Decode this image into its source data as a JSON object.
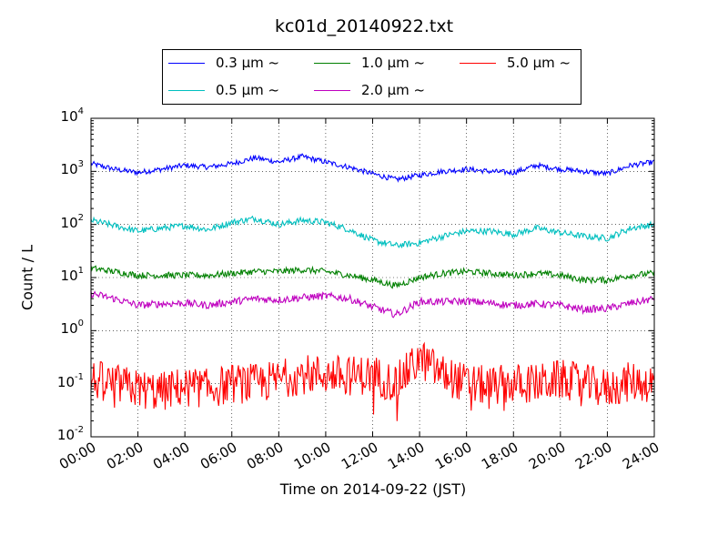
{
  "chart_data": {
    "type": "line",
    "title": "kc01d_20140922.txt",
    "xlabel": "Time on 2014-09-22 (JST)",
    "ylabel": "Count / L",
    "yscale": "log",
    "xlim": [
      "00:00",
      "24:00"
    ],
    "ylim": [
      0.01,
      10000
    ],
    "x_tick_labels": [
      "00:00",
      "02:00",
      "04:00",
      "06:00",
      "08:00",
      "10:00",
      "12:00",
      "14:00",
      "16:00",
      "18:00",
      "20:00",
      "22:00",
      "24:00"
    ],
    "y_tick_labels": [
      {
        "base": "10",
        "exp": "-2"
      },
      {
        "base": "10",
        "exp": "-1"
      },
      {
        "base": "10",
        "exp": "0"
      },
      {
        "base": "10",
        "exp": "1"
      },
      {
        "base": "10",
        "exp": "2"
      },
      {
        "base": "10",
        "exp": "3"
      },
      {
        "base": "10",
        "exp": "4"
      }
    ],
    "grid": true,
    "legend_position": "top-center",
    "x": [
      "00:00",
      "01:00",
      "02:00",
      "03:00",
      "04:00",
      "05:00",
      "06:00",
      "07:00",
      "08:00",
      "09:00",
      "10:00",
      "11:00",
      "12:00",
      "13:00",
      "14:00",
      "15:00",
      "16:00",
      "17:00",
      "18:00",
      "19:00",
      "20:00",
      "21:00",
      "22:00",
      "23:00",
      "24:00"
    ],
    "series": [
      {
        "name": "0.3 μm ~",
        "color": "#0000ff",
        "values": [
          1400,
          1100,
          950,
          1100,
          1300,
          1200,
          1400,
          1800,
          1500,
          1900,
          1500,
          1200,
          900,
          700,
          850,
          1000,
          1100,
          1000,
          950,
          1300,
          1100,
          1000,
          900,
          1300,
          1500
        ]
      },
      {
        "name": "0.5 μm ~",
        "color": "#00bfbf",
        "values": [
          120,
          95,
          75,
          85,
          95,
          80,
          110,
          130,
          100,
          120,
          110,
          80,
          50,
          40,
          45,
          60,
          75,
          75,
          65,
          85,
          70,
          60,
          55,
          85,
          100
        ]
      },
      {
        "name": "1.0 μm ~",
        "color": "#008000",
        "values": [
          15,
          13,
          11,
          11,
          11,
          11,
          12,
          13,
          13,
          14,
          13,
          11,
          9,
          7,
          10,
          12,
          13,
          12,
          11,
          12,
          11,
          9,
          9,
          11,
          12
        ]
      },
      {
        "name": "2.0 μm ~",
        "color": "#bf00bf",
        "values": [
          5,
          4,
          3,
          3.2,
          3.3,
          3,
          3.5,
          4,
          3.8,
          4.2,
          4.5,
          4,
          2.8,
          2,
          3.5,
          3.5,
          3.6,
          3.3,
          3,
          3.2,
          3,
          2.5,
          2.6,
          3.3,
          4
        ]
      },
      {
        "name": "5.0 μm ~",
        "color": "#ff0000",
        "values": [
          0.12,
          0.1,
          0.08,
          0.07,
          0.09,
          0.08,
          0.1,
          0.1,
          0.12,
          0.15,
          0.15,
          0.14,
          0.15,
          0.1,
          0.3,
          0.15,
          0.1,
          0.09,
          0.1,
          0.1,
          0.12,
          0.1,
          0.08,
          0.11,
          0.1
        ]
      }
    ]
  }
}
